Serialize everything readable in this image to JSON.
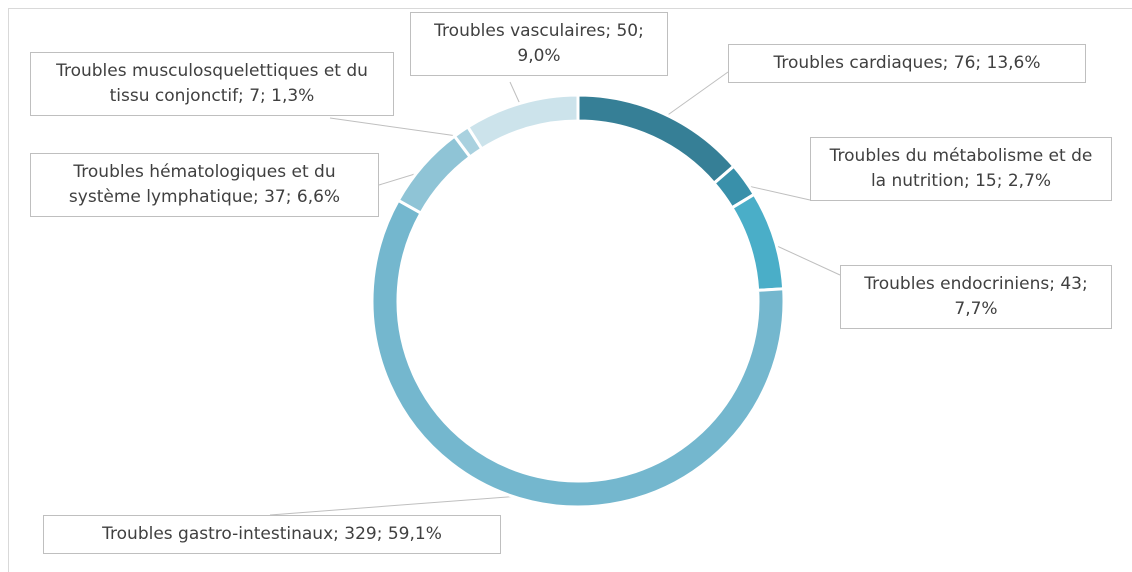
{
  "chart_data": {
    "type": "donut",
    "values": [
      76,
      15,
      43,
      329,
      37,
      7,
      50
    ],
    "value_labels": [
      "Troubles cardiaques; 76; 13,6%",
      "Troubles du métabolisme et de la nutrition; 15; 2,7%",
      "Troubles endocriniens; 43; 7,7%",
      "Troubles gastro-intestinaux; 329; 59,1%",
      "Troubles hématologiques et du système lymphatique; 37; 6,6%",
      "Troubles musculosquelettiques et du tissu conjonctif; 7; 1,3%",
      "Troubles vasculaires; 50; 9,0%"
    ],
    "colors": [
      "#367f96",
      "#3990aa",
      "#4aaec8",
      "#74b7ce",
      "#8fc4d6",
      "#a9d1df",
      "#cce3eb"
    ]
  }
}
